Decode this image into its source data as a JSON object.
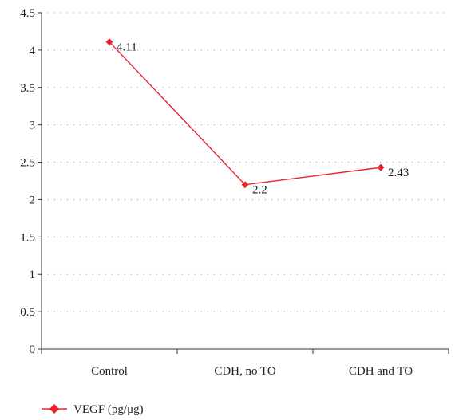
{
  "chart_data": {
    "type": "line",
    "categories": [
      "Control",
      "CDH, no TO",
      "CDH and TO"
    ],
    "series": [
      {
        "name": "VEGF (pg/μg)",
        "values": [
          4.11,
          2.2,
          2.43
        ],
        "data_labels": [
          "4.11",
          "2.2",
          "2.43"
        ],
        "color": "#e8242b"
      }
    ],
    "ylim": [
      0,
      4.5
    ],
    "yticks": [
      0,
      0.5,
      1,
      1.5,
      2,
      2.5,
      3,
      3.5,
      4,
      4.5
    ],
    "ytick_labels": [
      "0",
      "0.5",
      "1",
      "1.5",
      "2",
      "2.5",
      "3",
      "3.5",
      "4",
      "4.5"
    ],
    "grid": "horizontal dotted",
    "legend_position": "bottom-left",
    "axis_color": "#333333",
    "grid_color": "#888888"
  }
}
